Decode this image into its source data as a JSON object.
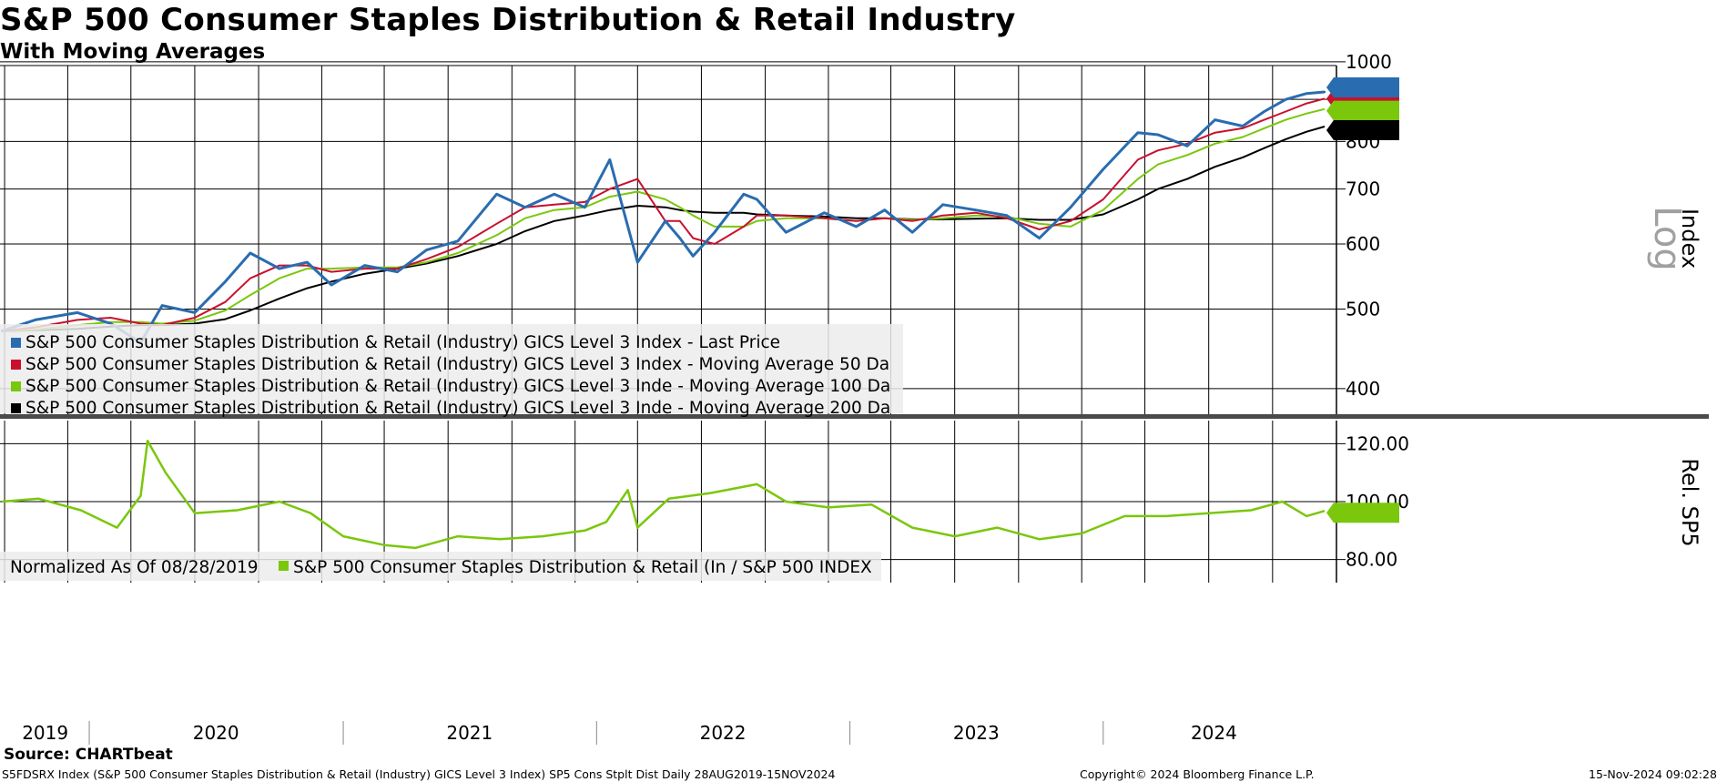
{
  "header": {
    "title": "S&P 500 Consumer Staples Distribution & Retail Industry",
    "subtitle": "With Moving Averages"
  },
  "footer": {
    "source": "Source: CHARTbeat",
    "description": "S5FDSRX Index (S&P 500 Consumer Staples Distribution & Retail (Industry) GICS Level 3 Index) SP5 Cons Stplt Dist  Daily 28AUG2019-15NOV2024",
    "copyright": "Copyright© 2024 Bloomberg Finance L.P.",
    "timestamp": "15-Nov-2024 09:02:28"
  },
  "colors": {
    "price": "#2a6cb0",
    "ma50": "#c8102e",
    "ma100": "#7ac70c",
    "ma200": "#000000",
    "relative": "#7ac70c",
    "grid": "#000000",
    "separator": "#4a4a4a"
  },
  "chart_data": [
    {
      "type": "line",
      "title": "S&P 500 Consumer Staples Distribution & Retail Industry",
      "subtitle": "With Moving Averages",
      "ylabel": "Index",
      "scale": "log",
      "scale_watermark": "Log",
      "ylim": [
        380,
        1010
      ],
      "y_ticks": [
        400,
        500,
        600,
        700,
        800,
        1000
      ],
      "x_range": [
        "2019-08-28",
        "2024-11-15"
      ],
      "x_year_labels": [
        "2019",
        "2020",
        "2021",
        "2022",
        "2023",
        "2024"
      ],
      "grid": true,
      "legend_position": "bottom-left",
      "x": [
        "2019-08-28",
        "2019-10-15",
        "2019-12-15",
        "2020-02-01",
        "2020-03-15",
        "2020-04-15",
        "2020-06-01",
        "2020-07-15",
        "2020-08-20",
        "2020-10-01",
        "2020-11-10",
        "2020-12-15",
        "2021-02-01",
        "2021-03-20",
        "2021-05-01",
        "2021-06-15",
        "2021-08-10",
        "2021-09-20",
        "2021-11-01",
        "2021-12-15",
        "2022-01-20",
        "2022-03-01",
        "2022-04-10",
        "2022-05-01",
        "2022-05-20",
        "2022-06-20",
        "2022-08-01",
        "2022-08-20",
        "2022-10-01",
        "2022-11-25",
        "2023-01-10",
        "2023-02-20",
        "2023-04-01",
        "2023-05-15",
        "2023-07-01",
        "2023-08-15",
        "2023-10-01",
        "2023-11-15",
        "2024-01-01",
        "2024-02-20",
        "2024-03-20",
        "2024-05-01",
        "2024-06-10",
        "2024-07-20",
        "2024-08-20",
        "2024-09-20",
        "2024-10-20",
        "2024-11-15"
      ],
      "series": [
        {
          "name": "S&P 500 Consumer Staples Distribution & Retail (Industry) GICS Level 3 Index - Last Price",
          "last_value": "919.02",
          "values": [
            470,
            485,
            495,
            480,
            455,
            505,
            495,
            540,
            585,
            560,
            570,
            535,
            565,
            555,
            590,
            605,
            690,
            665,
            690,
            665,
            760,
            570,
            640,
            610,
            580,
            620,
            690,
            680,
            620,
            655,
            630,
            660,
            620,
            670,
            660,
            650,
            610,
            665,
            740,
            820,
            815,
            790,
            850,
            835,
            870,
            900,
            915,
            919
          ]
        },
        {
          "name": "S&P 500 Consumer Staples Distribution & Retail (Industry) GICS Level 3 Index - Moving Average 50 Da",
          "last_value": "901.8",
          "values": [
            470,
            475,
            485,
            488,
            480,
            478,
            488,
            510,
            545,
            565,
            565,
            555,
            560,
            560,
            575,
            595,
            635,
            665,
            670,
            675,
            700,
            720,
            640,
            640,
            610,
            600,
            630,
            650,
            650,
            645,
            640,
            645,
            640,
            650,
            655,
            645,
            625,
            640,
            680,
            760,
            780,
            795,
            820,
            830,
            850,
            870,
            890,
            902
          ]
        },
        {
          "name": "S&P 500 Consumer Staples Distribution & Retail (Industry) GICS Level 3 Inde - Moving Average 100 Da",
          "last_value": "876.39",
          "values": [
            470,
            472,
            478,
            482,
            482,
            480,
            484,
            498,
            520,
            545,
            560,
            560,
            562,
            562,
            570,
            585,
            615,
            645,
            660,
            665,
            685,
            695,
            680,
            665,
            650,
            630,
            630,
            640,
            645,
            645,
            640,
            645,
            642,
            645,
            650,
            648,
            635,
            630,
            660,
            720,
            750,
            770,
            795,
            810,
            830,
            850,
            865,
            876
          ]
        },
        {
          "name": "S&P 500 Consumer Staples Distribution & Retail (Industry) GICS Level 3 Inde - Moving Average 200 Da",
          "last_value": "834.16",
          "values": [
            470,
            471,
            473,
            476,
            478,
            478,
            480,
            486,
            498,
            515,
            530,
            540,
            552,
            560,
            568,
            580,
            600,
            622,
            640,
            650,
            660,
            668,
            665,
            660,
            657,
            655,
            655,
            652,
            650,
            648,
            645,
            645,
            643,
            643,
            644,
            645,
            642,
            642,
            652,
            680,
            700,
            720,
            745,
            765,
            785,
            805,
            822,
            834
          ]
        }
      ]
    },
    {
      "type": "line",
      "ylabel": "Rel. SP5",
      "ylim": [
        72,
        128
      ],
      "y_ticks": [
        80,
        100,
        120
      ],
      "y_tick_labels": [
        "80.00",
        "100.00",
        "120.00"
      ],
      "legend_position": "bottom-left",
      "normalized_note": "Normalized As Of 08/28/2019",
      "x": [
        "2019-08-28",
        "2019-10-20",
        "2019-12-20",
        "2020-02-10",
        "2020-03-15",
        "2020-03-25",
        "2020-04-20",
        "2020-06-01",
        "2020-08-01",
        "2020-10-01",
        "2020-11-15",
        "2021-01-01",
        "2021-03-01",
        "2021-04-15",
        "2021-06-15",
        "2021-08-15",
        "2021-10-15",
        "2021-12-15",
        "2022-01-15",
        "2022-02-15",
        "2022-03-01",
        "2022-04-15",
        "2022-06-15",
        "2022-08-20",
        "2022-10-01",
        "2022-12-01",
        "2023-02-01",
        "2023-04-01",
        "2023-06-01",
        "2023-08-01",
        "2023-10-01",
        "2023-12-01",
        "2024-02-01",
        "2024-04-01",
        "2024-06-01",
        "2024-08-01",
        "2024-09-15",
        "2024-10-20",
        "2024-11-15"
      ],
      "series": [
        {
          "name": "S&P 500 Consumer Staples Distribution & Retail (In / S&P 500 INDEX",
          "last_value": "96.79",
          "values": [
            100,
            101,
            97,
            91,
            102,
            121,
            110,
            96,
            97,
            100,
            96,
            88,
            85,
            84,
            88,
            87,
            88,
            90,
            93,
            104,
            91,
            101,
            103,
            106,
            100,
            98,
            99,
            91,
            88,
            91,
            87,
            89,
            95,
            95,
            96,
            97,
            100,
            95,
            96.79
          ]
        }
      ]
    }
  ]
}
